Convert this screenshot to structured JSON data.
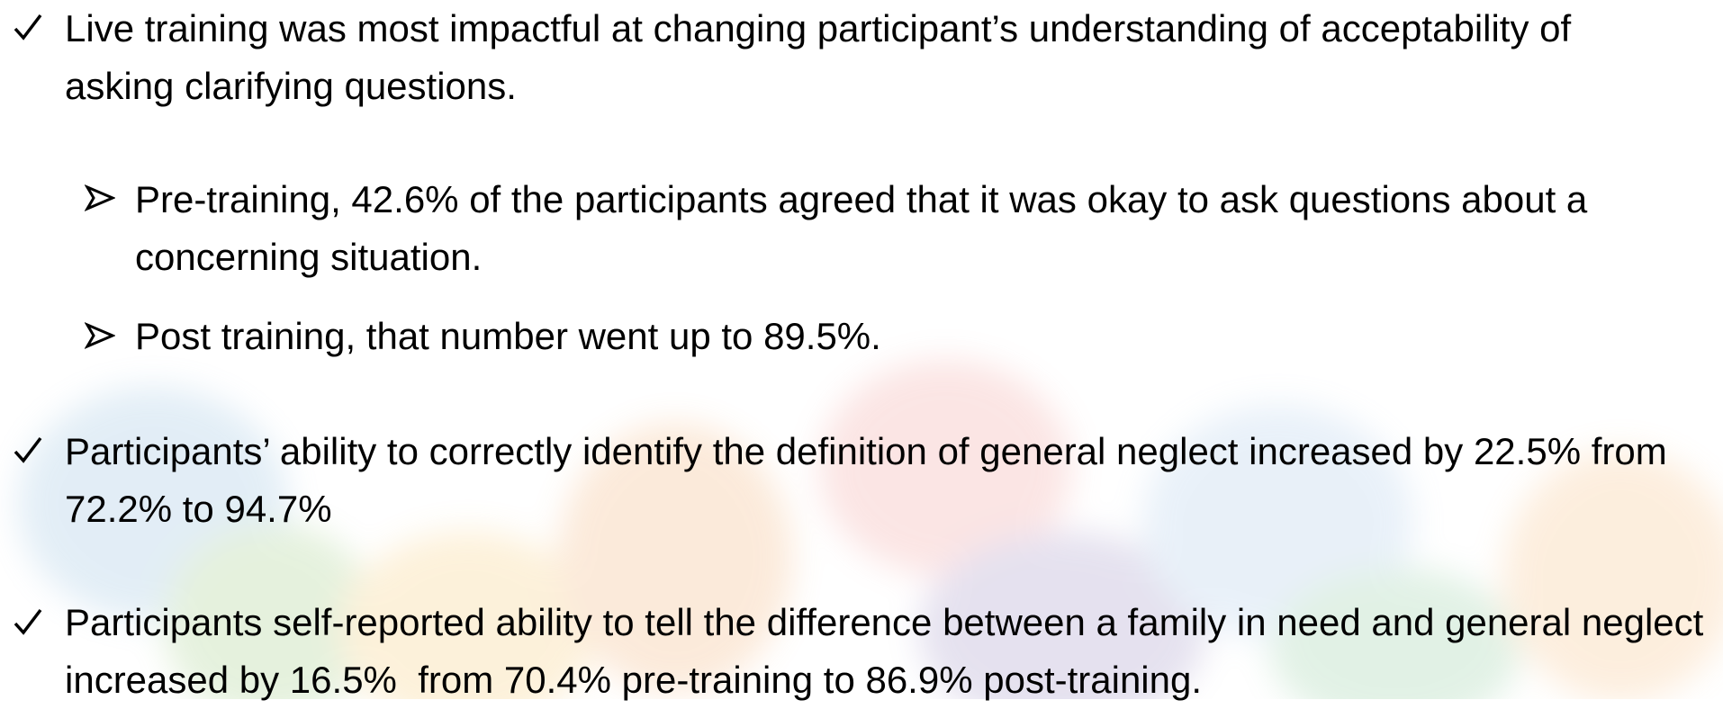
{
  "bullets": [
    {
      "text": "Live training was most impactful at changing participant’s understanding of acceptability of asking clarifying questions.",
      "sub_bullets": [
        {
          "text": "Pre-training, 42.6% of the participants agreed that it was okay to ask questions about a concerning situation."
        },
        {
          "text": "Post training, that number went up to 89.5%."
        }
      ]
    },
    {
      "text": "Participants’ ability to correctly identify the definition of general neglect increased by 22.5% from 72.2% to 94.7%"
    },
    {
      "text": "Participants self-reported ability to tell the difference between a family in need and general neglect increased by 16.5%  from 70.4% pre-training to 86.9% post-training."
    }
  ]
}
